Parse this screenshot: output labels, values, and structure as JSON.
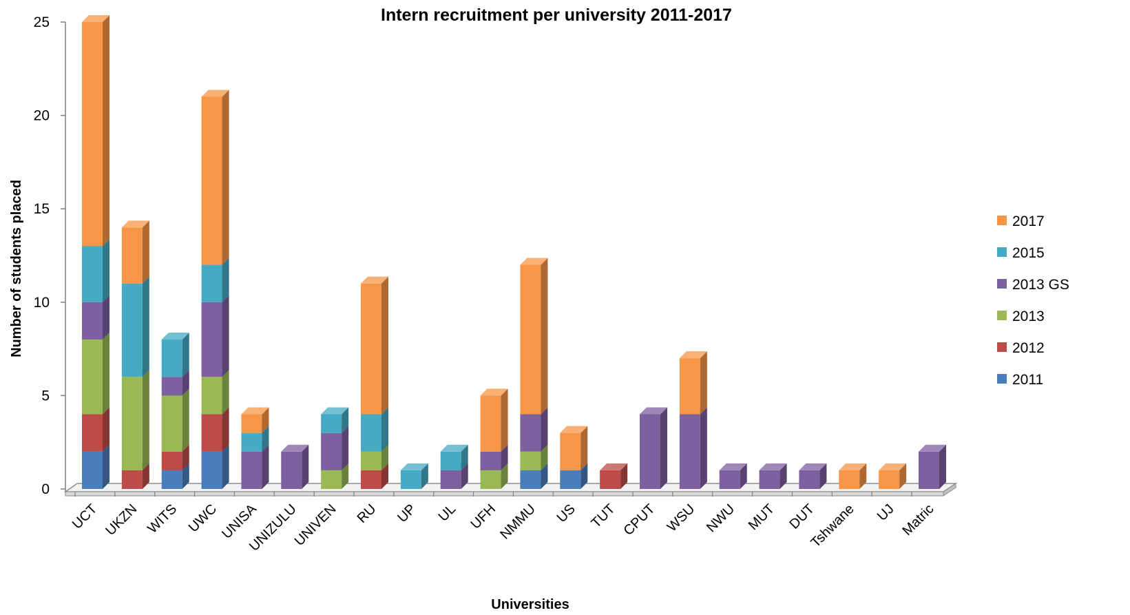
{
  "chart_data": {
    "type": "bar",
    "stacked": true,
    "three_d": true,
    "title": "Intern recruitment per university 2011-2017",
    "xlabel": "Universities",
    "ylabel": "Number of students placed",
    "ylim": [
      0,
      25
    ],
    "yticks": [
      0,
      5,
      10,
      15,
      20,
      25
    ],
    "grid": false,
    "legend_position": "right",
    "categories": [
      "UCT",
      "UKZN",
      "WITS",
      "UWC",
      "UNISA",
      "UNIZULU",
      "UNIVEN",
      "RU",
      "UP",
      "UL",
      "UFH",
      "NMMU",
      "US",
      "TUT",
      "CPUT",
      "WSU",
      "NWU",
      "MUT",
      "DUT",
      "Tshwane",
      "UJ",
      "Matric"
    ],
    "series": [
      {
        "name": "2011",
        "color": "#4a7ebb",
        "values": [
          2,
          0,
          1,
          2,
          0,
          0,
          0,
          0,
          0,
          0,
          0,
          1,
          1,
          0,
          0,
          0,
          0,
          0,
          0,
          0,
          0,
          0
        ]
      },
      {
        "name": "2012",
        "color": "#be4b48",
        "values": [
          2,
          1,
          1,
          2,
          0,
          0,
          0,
          1,
          0,
          0,
          0,
          0,
          0,
          1,
          0,
          0,
          0,
          0,
          0,
          0,
          0,
          0
        ]
      },
      {
        "name": "2013",
        "color": "#98b954",
        "values": [
          4,
          5,
          3,
          2,
          0,
          0,
          1,
          1,
          0,
          0,
          1,
          1,
          0,
          0,
          0,
          0,
          0,
          0,
          0,
          0,
          0,
          0
        ]
      },
      {
        "name": "2013 GS",
        "color": "#7d60a0",
        "values": [
          2,
          0,
          1,
          4,
          2,
          2,
          2,
          0,
          0,
          1,
          1,
          2,
          0,
          0,
          4,
          4,
          1,
          1,
          1,
          0,
          0,
          2
        ]
      },
      {
        "name": "2015",
        "color": "#46aac5",
        "values": [
          3,
          5,
          2,
          2,
          1,
          0,
          1,
          2,
          1,
          1,
          0,
          0,
          0,
          0,
          0,
          0,
          0,
          0,
          0,
          0,
          0,
          0
        ]
      },
      {
        "name": "2017",
        "color": "#f79646",
        "values": [
          12,
          3,
          0,
          9,
          1,
          0,
          0,
          7,
          0,
          0,
          3,
          8,
          2,
          0,
          0,
          3,
          0,
          0,
          0,
          1,
          1,
          0
        ]
      }
    ]
  }
}
